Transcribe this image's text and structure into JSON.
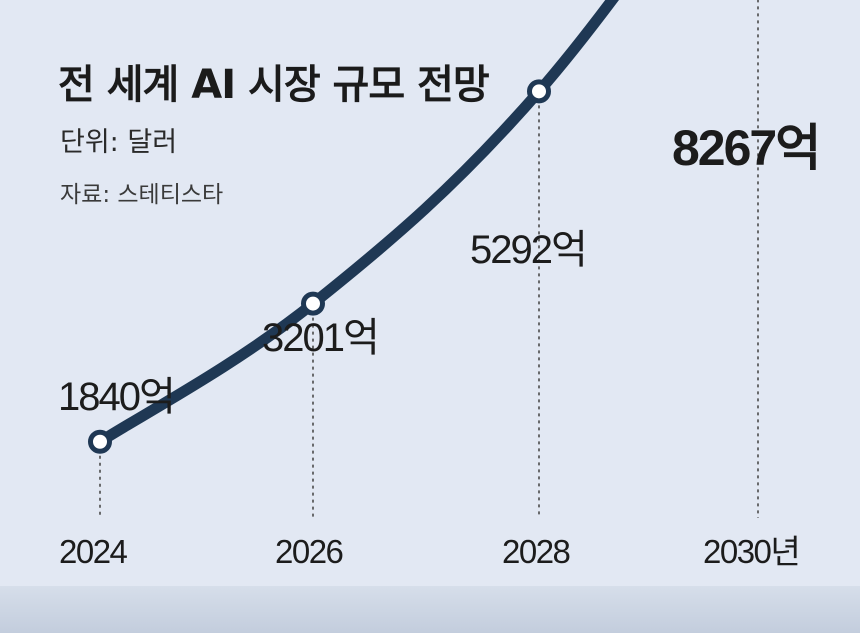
{
  "chart_data": {
    "type": "line",
    "title": "전 세계 AI 시장 규모 전망",
    "unit_label": "단위: 달러",
    "source_label": "자료: 스테티스타",
    "x": [
      "2024",
      "2026",
      "2028",
      "2030"
    ],
    "x_tick_labels": [
      "2024",
      "2026",
      "2028",
      "2030년"
    ],
    "series": [
      {
        "values": [
          1840,
          3201,
          5292,
          8267
        ],
        "labels": [
          "1840억",
          "3201억",
          "5292억",
          "8267억"
        ]
      }
    ],
    "ylim": [
      0,
      9000
    ],
    "grid": false,
    "legend": "none"
  },
  "colors": {
    "background": "#e2e8f3",
    "line": "#1f3854",
    "marker_fill": "#ffffff",
    "guide": "#4a4a4a"
  }
}
